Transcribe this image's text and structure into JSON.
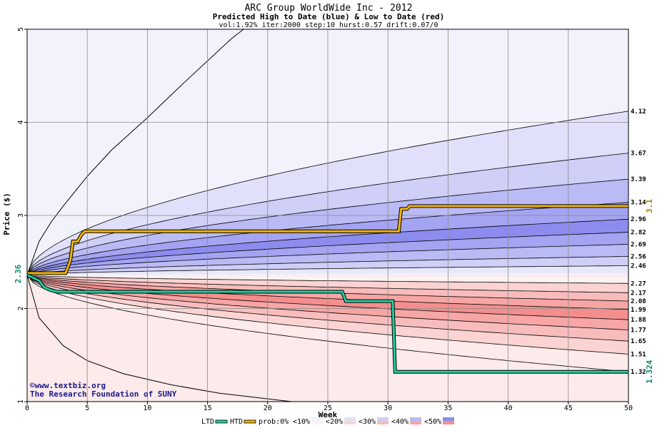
{
  "chart_data": {
    "type": "area",
    "title": "ARC Group WorldWide Inc - 2012",
    "subtitle": "Predicted High to Date (blue) &  Low to Date (red)",
    "params": "vol:1.92% iter:2000 step:10 hurst:0.57 drift:0.07/0",
    "xlabel": "Week",
    "ylabel": "Price ($)",
    "xlim": [
      0,
      50
    ],
    "ylim": [
      1,
      5
    ],
    "x_ticks": [
      0,
      5,
      10,
      15,
      20,
      25,
      30,
      35,
      40,
      45,
      50
    ],
    "y_ticks": [
      1,
      2,
      3,
      4,
      5
    ],
    "grid": true,
    "start_price": 2.36,
    "start_label": "2.36",
    "high_band_end_values": [
      4.12,
      3.67,
      3.39,
      3.14,
      2.96,
      2.82,
      2.69,
      2.56,
      2.46
    ],
    "low_band_end_values": [
      2.27,
      2.17,
      2.08,
      1.99,
      1.88,
      1.77,
      1.65,
      1.51,
      1.32
    ],
    "right_labels": [
      "4.12",
      "3.67",
      "3.39",
      "3.14",
      "2.96",
      "2.82",
      "2.69",
      "2.56",
      "2.46",
      "2.27",
      "2.17",
      "2.08",
      "1.99",
      "1.88",
      "1.77",
      "1.65",
      "1.51",
      "1.32"
    ],
    "high_band_colors": [
      "#f2f2fc",
      "#e0e0fa",
      "#cfcff8",
      "#babaf5",
      "#a4a4f2",
      "#8c8cee",
      "#a4a4f2",
      "#babaf5",
      "#cfcff8",
      "#e8e8fb"
    ],
    "low_band_colors": [
      "#fdeaea",
      "#fbd3d3",
      "#f9bcbc",
      "#f7a5a5",
      "#f48e8e",
      "#f7a5a5",
      "#f9bcbc",
      "#fbd3d3",
      "#fdeaea",
      "#fdf2f2"
    ],
    "outer_high_envelope": [
      {
        "x": 0,
        "y": 2.36
      },
      {
        "x": 1,
        "y": 2.72
      },
      {
        "x": 2,
        "y": 2.93
      },
      {
        "x": 3,
        "y": 3.1
      },
      {
        "x": 5,
        "y": 3.42
      },
      {
        "x": 7,
        "y": 3.7
      },
      {
        "x": 10,
        "y": 4.05
      },
      {
        "x": 13,
        "y": 4.42
      },
      {
        "x": 17,
        "y": 4.9
      },
      {
        "x": 18,
        "y": 5.0
      }
    ],
    "outer_low_envelope": [
      {
        "x": 0,
        "y": 2.36
      },
      {
        "x": 1,
        "y": 1.9
      },
      {
        "x": 3,
        "y": 1.6
      },
      {
        "x": 5,
        "y": 1.44
      },
      {
        "x": 8,
        "y": 1.3
      },
      {
        "x": 12,
        "y": 1.18
      },
      {
        "x": 16,
        "y": 1.09
      },
      {
        "x": 20,
        "y": 1.03
      },
      {
        "x": 22,
        "y": 1.0
      }
    ],
    "series": [
      {
        "name": "HTD",
        "color": "#f0b400",
        "points": [
          {
            "x": 0,
            "y": 2.38
          },
          {
            "x": 3.2,
            "y": 2.38
          },
          {
            "x": 3.6,
            "y": 2.52
          },
          {
            "x": 3.8,
            "y": 2.72
          },
          {
            "x": 4.2,
            "y": 2.72
          },
          {
            "x": 4.5,
            "y": 2.79
          },
          {
            "x": 4.8,
            "y": 2.83
          },
          {
            "x": 30.9,
            "y": 2.83
          },
          {
            "x": 31.1,
            "y": 3.07
          },
          {
            "x": 31.6,
            "y": 3.07
          },
          {
            "x": 31.8,
            "y": 3.1
          },
          {
            "x": 50,
            "y": 3.1
          }
        ]
      },
      {
        "name": "LTD",
        "color": "#20d0a0",
        "points": [
          {
            "x": 0,
            "y": 2.36
          },
          {
            "x": 1.0,
            "y": 2.3
          },
          {
            "x": 1.4,
            "y": 2.23
          },
          {
            "x": 1.9,
            "y": 2.2
          },
          {
            "x": 2.5,
            "y": 2.18
          },
          {
            "x": 26.2,
            "y": 2.18
          },
          {
            "x": 26.5,
            "y": 2.08
          },
          {
            "x": 30.4,
            "y": 2.08
          },
          {
            "x": 30.6,
            "y": 1.32
          },
          {
            "x": 50,
            "y": 1.32
          }
        ]
      }
    ],
    "end_value_labels": [
      {
        "series": "HTD",
        "text": "3.1",
        "y": 3.1,
        "color": "#a08a00"
      },
      {
        "series": "LTD",
        "text": "1.324",
        "y": 1.32,
        "color": "#108a6a"
      }
    ],
    "legend": {
      "placement": "bottom-center",
      "items": [
        {
          "label": "LTD",
          "swatch": "line",
          "color": "#20d0a0"
        },
        {
          "label": "HTD",
          "swatch": "line",
          "color": "#f0b400"
        },
        {
          "label": "prob:0%",
          "swatch": "none"
        },
        {
          "label": "<10%",
          "swatch": "pair",
          "colors": [
            "#fdf2f2",
            "#f2f2fc"
          ]
        },
        {
          "label": "<20%",
          "swatch": "pair",
          "colors": [
            "#fbd3d3",
            "#e0e0fa"
          ]
        },
        {
          "label": "<30%",
          "swatch": "pair",
          "colors": [
            "#f9bcbc",
            "#cfcff8"
          ]
        },
        {
          "label": "<40%",
          "swatch": "pair",
          "colors": [
            "#f7a5a5",
            "#babaf5"
          ]
        },
        {
          "label": "<50%",
          "swatch": "pair",
          "colors": [
            "#f48e8e",
            "#8c8cee"
          ]
        }
      ]
    },
    "credits": [
      "©www.textbiz.org",
      "The Research Foundation of SUNY"
    ]
  }
}
